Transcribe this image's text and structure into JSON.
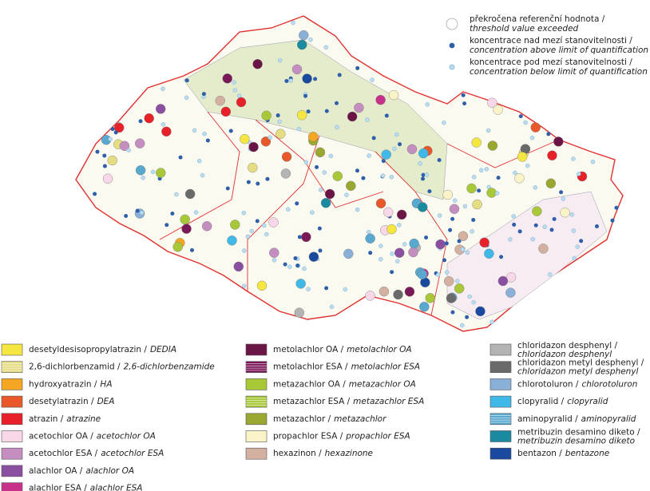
{
  "map_legend": {
    "symbols": [
      {
        "czech": "překročena referenční hodnota /",
        "english": "threshold value exceeded",
        "color": "#ffffff",
        "stroke": "#aaaaaa",
        "size": 7
      },
      {
        "czech": "koncentrace nad mezí stanovitelnosti /",
        "english": "concentration above limit of quantification",
        "color": "#2f5fa8",
        "stroke": "#2f5fa8",
        "size": 3
      },
      {
        "czech": "koncentrace pod mezí stanovitelnosti /",
        "english": "concentration below limit of quantification",
        "color": "#bcdcf0",
        "stroke": "#7fb0d0",
        "size": 3
      }
    ],
    "columns": [
      [
        {
          "czech": "desetyldesisopropylatrazin /",
          "english": "DEDIA",
          "color": "#f5e642"
        },
        {
          "czech": "2,6-dichlorbenzamid /",
          "english": "2,6-dichlorbenzamide",
          "color": "#e6dc82",
          "pattern": "hatched"
        },
        {
          "czech": "hydroxyatrazin /",
          "english": "HA",
          "color": "#f5a623"
        },
        {
          "czech": "desetylatrazin /",
          "english": "DEA",
          "color": "#e8582a"
        },
        {
          "czech": "atrazin /",
          "english": "atrazine",
          "color": "#e8202a"
        },
        {
          "czech": "acetochlor OA /",
          "english": "acetochlor OA",
          "color": "#f8d8e8"
        },
        {
          "czech": "acetochlor ESA /",
          "english": "acetochlor ESA",
          "color": "#c48ec0"
        },
        {
          "czech": "alachlor OA /",
          "english": "alachlor OA",
          "color": "#8a4fa0"
        },
        {
          "czech": "alachlor ESA /",
          "english": "alachlor ESA",
          "color": "#c8318a"
        }
      ],
      [
        {
          "czech": "metolachlor OA /",
          "english": "metolachlor OA",
          "color": "#6b1446"
        },
        {
          "czech": "metolachlor ESA /",
          "english": "metolachlor ESA",
          "color": "#7a1858",
          "pattern": "hatched"
        },
        {
          "czech": "metazachlor OA /",
          "english": "metazachlor OA",
          "color": "#a8c838"
        },
        {
          "czech": "metazachlor ESA /",
          "english": "metazachlor ESA",
          "color": "#a8c838",
          "pattern": "hatched"
        },
        {
          "czech": "metazachlor /",
          "english": "metazachlor",
          "color": "#9aa830"
        },
        {
          "czech": "propachlor ESA /",
          "english": "propachlor ESA",
          "color": "#fbf3c8"
        },
        {
          "czech": "hexazinon /",
          "english": "hexazinone",
          "color": "#d4b0a0"
        }
      ],
      [
        {
          "czech": "chloridazon desphenyl /",
          "english": "chloridazon desphenyl",
          "color": "#b4b4b4",
          "wrap": true
        },
        {
          "czech": "chloridazon metyl desphenyl /",
          "english": "chloridazon metyl desphenyl",
          "color": "#6a6a6a",
          "wrap": true
        },
        {
          "czech": "chlorotoluron /",
          "english": "chlorotoluron",
          "color": "#8ab0d8"
        },
        {
          "czech": "clopyralid /",
          "english": "clopyralid",
          "color": "#40b8e8"
        },
        {
          "czech": "aminopyralid /",
          "english": "aminopyralid",
          "color": "#58a8d0",
          "pattern": "hatched"
        },
        {
          "czech": "metribuzin desamino diketo /",
          "english": "metribuzin desamino diketo",
          "color": "#1a8aa0",
          "wrap": true
        },
        {
          "czech": "bentazon /",
          "english": "bentazone",
          "color": "#1a4aa0"
        }
      ]
    ]
  }
}
